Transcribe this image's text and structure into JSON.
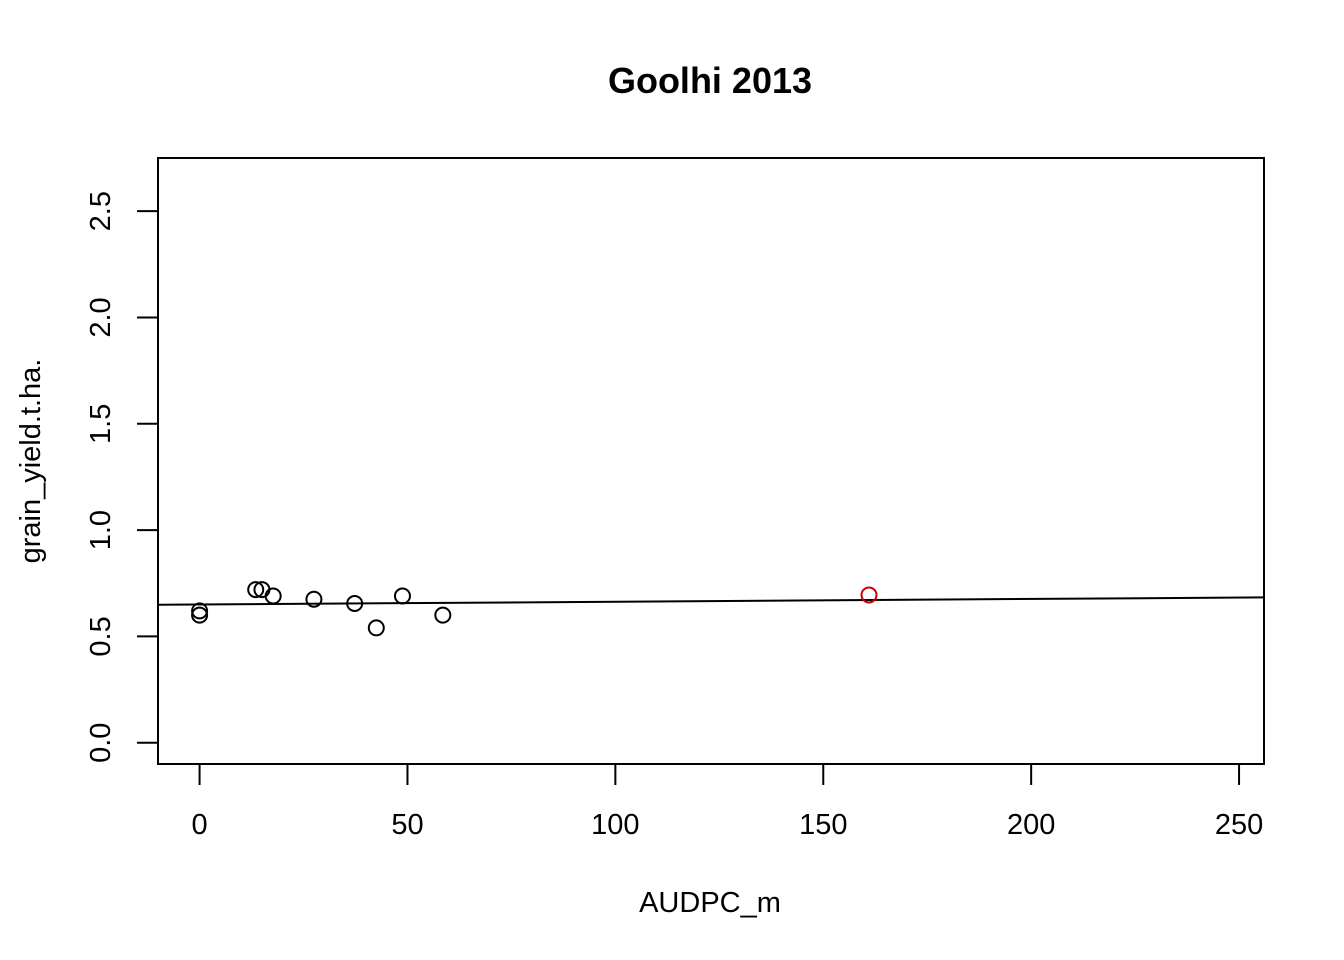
{
  "chart_data": {
    "type": "scatter",
    "title": "Goolhi 2013",
    "xlabel": "AUDPC_m",
    "ylabel": "grain_yield.t.ha.",
    "xlim": [
      -10,
      256
    ],
    "ylim": [
      -0.1,
      2.75
    ],
    "x_ticks": [
      0,
      50,
      100,
      150,
      200,
      250
    ],
    "y_ticks": [
      0.0,
      0.5,
      1.0,
      1.5,
      2.0,
      2.5
    ],
    "x_tick_labels": [
      "0",
      "50",
      "100",
      "150",
      "200",
      "250"
    ],
    "y_tick_labels": [
      "0.0",
      "0.5",
      "1.0",
      "1.5",
      "2.0",
      "2.5"
    ],
    "grid": false,
    "marker": "open-circle",
    "series": [
      {
        "color": "#000000",
        "points": [
          {
            "x": 0,
            "y": 0.62
          },
          {
            "x": 0,
            "y": 0.6
          },
          {
            "x": 13.5,
            "y": 0.72
          },
          {
            "x": 15,
            "y": 0.72
          },
          {
            "x": 17.7,
            "y": 0.69
          },
          {
            "x": 27.5,
            "y": 0.675
          },
          {
            "x": 37.3,
            "y": 0.655
          },
          {
            "x": 42.5,
            "y": 0.54
          },
          {
            "x": 48.8,
            "y": 0.69
          },
          {
            "x": 58.5,
            "y": 0.6
          }
        ]
      },
      {
        "color": "#cc0000",
        "points": [
          {
            "x": 161,
            "y": 0.695
          }
        ]
      }
    ],
    "fit_line": {
      "color": "#000000",
      "intercept": 0.65,
      "slope": 0.000131
    }
  }
}
